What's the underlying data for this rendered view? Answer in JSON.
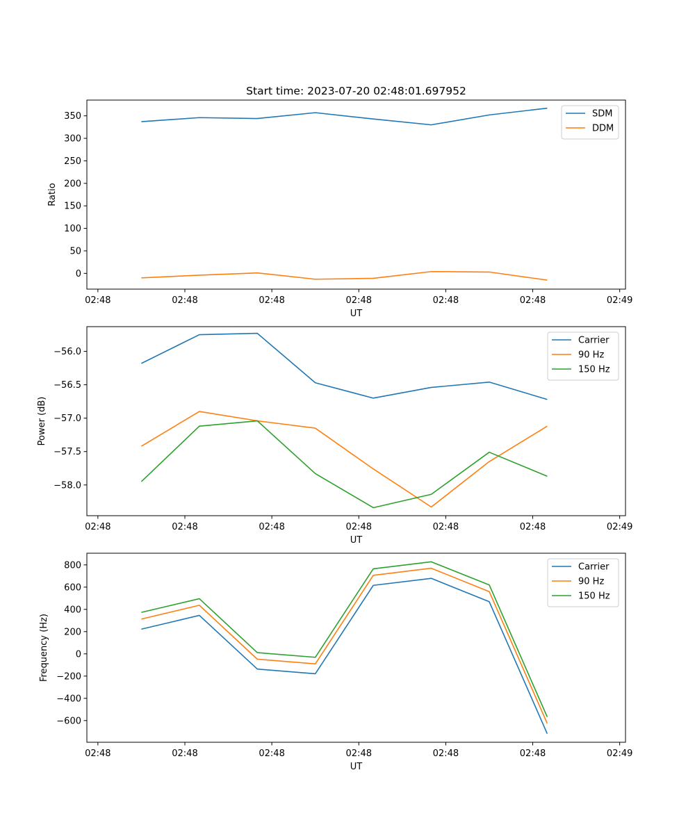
{
  "figure_title": "Start time: 2023-07-20 02:48:01.697952",
  "chart_data": [
    {
      "type": "line",
      "title": "Start time: 2023-07-20 02:48:01.697952",
      "xlabel": "UT",
      "ylabel": "Ratio",
      "xlim": [
        -0.19,
        9.1
      ],
      "ylim": [
        -35,
        385
      ],
      "yticks": [
        0,
        50,
        100,
        150,
        200,
        250,
        300,
        350
      ],
      "ytick_labels": [
        "0",
        "50",
        "100",
        "150",
        "200",
        "250",
        "300",
        "350"
      ],
      "xtick_positions": [
        0,
        1.5,
        3,
        4.5,
        6,
        7.5,
        9
      ],
      "xtick_labels": [
        "02:48",
        "02:48",
        "02:48",
        "02:48",
        "02:48",
        "02:48",
        "02:49"
      ],
      "x": [
        0.75,
        1.75,
        2.75,
        3.75,
        4.75,
        5.75,
        6.75,
        7.75
      ],
      "legend_position": "top-right",
      "series": [
        {
          "name": "SDM",
          "color": "#1f77b4",
          "values": [
            337,
            346,
            344,
            357,
            343,
            330,
            352,
            367
          ]
        },
        {
          "name": "DDM",
          "color": "#ff7f0e",
          "values": [
            -10,
            -4,
            1,
            -13,
            -11,
            4,
            3,
            -15
          ]
        }
      ]
    },
    {
      "type": "line",
      "title": "",
      "xlabel": "UT",
      "ylabel": "Power (dB)",
      "xlim": [
        -0.19,
        9.1
      ],
      "ylim": [
        -58.46,
        -55.63
      ],
      "yticks": [
        -58.0,
        -57.5,
        -57.0,
        -56.5,
        -56.0
      ],
      "ytick_labels": [
        "−58.0",
        "−57.5",
        "−57.0",
        "−56.5",
        "−56.0"
      ],
      "xtick_positions": [
        0,
        1.5,
        3,
        4.5,
        6,
        7.5,
        9
      ],
      "xtick_labels": [
        "02:48",
        "02:48",
        "02:48",
        "02:48",
        "02:48",
        "02:48",
        "02:49"
      ],
      "x": [
        0.75,
        1.75,
        2.75,
        3.75,
        4.75,
        5.75,
        6.75,
        7.75
      ],
      "legend_position": "top-right",
      "series": [
        {
          "name": "Carrier",
          "color": "#1f77b4",
          "values": [
            -56.18,
            -55.75,
            -55.73,
            -56.47,
            -56.7,
            -56.54,
            -56.46,
            -56.72
          ]
        },
        {
          "name": "90 Hz",
          "color": "#ff7f0e",
          "values": [
            -57.42,
            -56.9,
            -57.04,
            -57.15,
            -57.76,
            -58.33,
            -57.65,
            -57.12
          ]
        },
        {
          "name": "150 Hz",
          "color": "#2ca02c",
          "values": [
            -57.95,
            -57.12,
            -57.04,
            -57.83,
            -58.34,
            -58.14,
            -57.51,
            -57.87
          ]
        }
      ]
    },
    {
      "type": "line",
      "title": "",
      "xlabel": "UT",
      "ylabel": "Frequency (Hz)",
      "xlim": [
        -0.19,
        9.1
      ],
      "ylim": [
        -795,
        905
      ],
      "yticks": [
        -600,
        -400,
        -200,
        0,
        200,
        400,
        600,
        800
      ],
      "ytick_labels": [
        "−600",
        "−400",
        "−200",
        "0",
        "200",
        "400",
        "600",
        "800"
      ],
      "xtick_positions": [
        0,
        1.5,
        3,
        4.5,
        6,
        7.5,
        9
      ],
      "xtick_labels": [
        "02:48",
        "02:48",
        "02:48",
        "02:48",
        "02:48",
        "02:48",
        "02:49"
      ],
      "x": [
        0.75,
        1.75,
        2.75,
        3.75,
        4.75,
        5.75,
        6.75,
        7.75
      ],
      "legend_position": "top-right",
      "series": [
        {
          "name": "Carrier",
          "color": "#1f77b4",
          "values": [
            222,
            346,
            -137,
            -179,
            616,
            679,
            469,
            -718
          ]
        },
        {
          "name": "90 Hz",
          "color": "#ff7f0e",
          "values": [
            313,
            437,
            -48,
            -90,
            706,
            770,
            560,
            -626
          ]
        },
        {
          "name": "150 Hz",
          "color": "#2ca02c",
          "values": [
            373,
            496,
            11,
            -31,
            765,
            828,
            620,
            -567
          ]
        }
      ]
    }
  ]
}
